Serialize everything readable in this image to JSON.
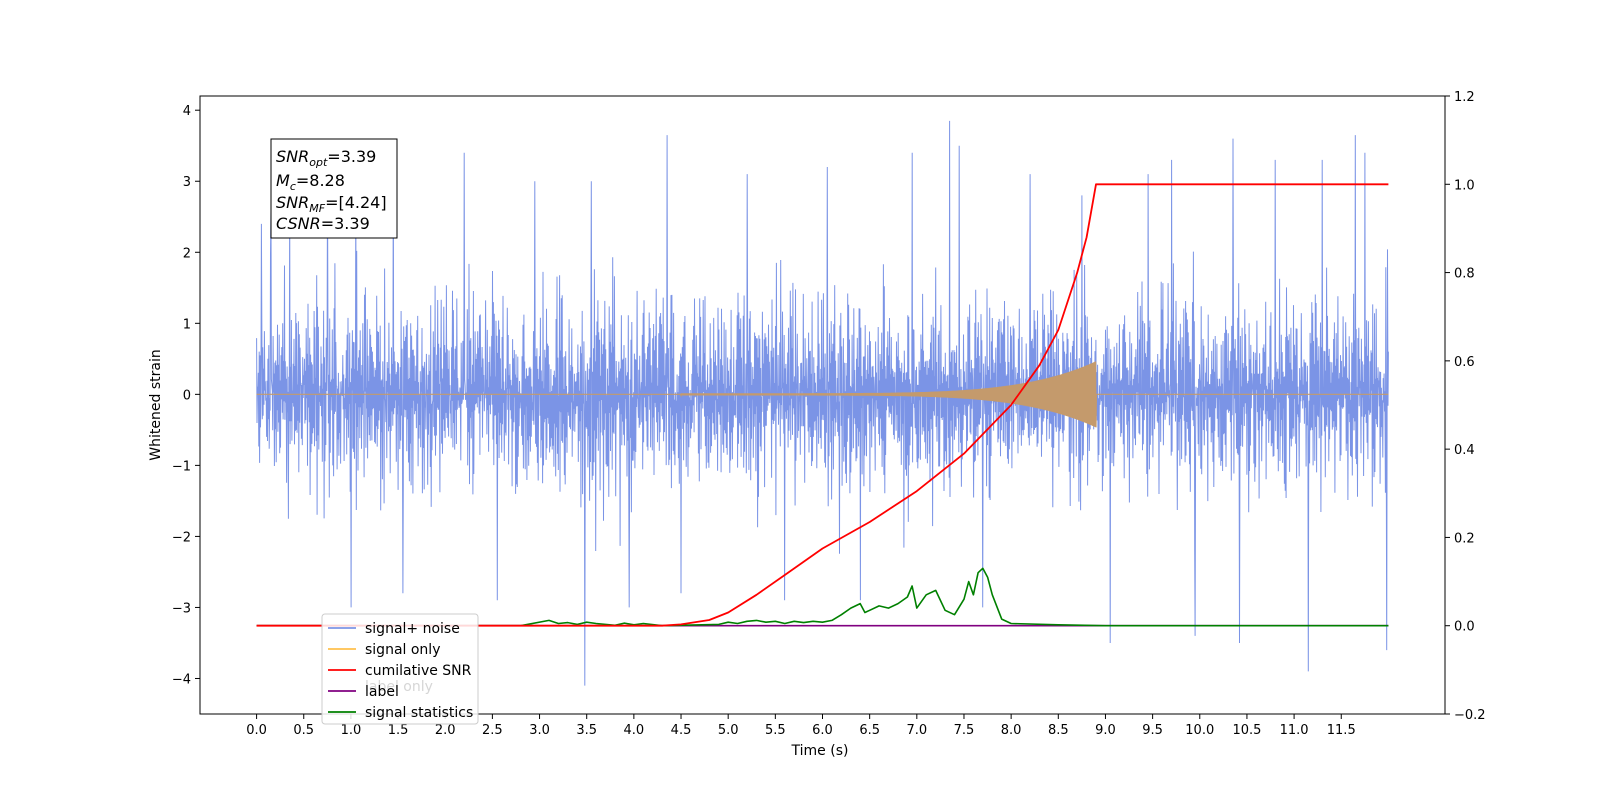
{
  "chart_data": {
    "type": "line",
    "xlabel": "Time (s)",
    "ylabel": "Whitened strain",
    "xlim": [
      -0.6,
      12.6
    ],
    "ylim_left": [
      -4.5,
      4.2
    ],
    "ylim_right": [
      -0.2,
      1.2
    ],
    "x_ticks": [
      "0.0",
      "0.5",
      "1.0",
      "1.5",
      "2.0",
      "2.5",
      "3.0",
      "3.5",
      "4.0",
      "4.5",
      "5.0",
      "5.5",
      "6.0",
      "6.5",
      "7.0",
      "7.5",
      "8.0",
      "8.5",
      "9.0",
      "9.5",
      "10.0",
      "10.5",
      "11.0",
      "11.5"
    ],
    "y_ticks_left": [
      "4",
      "3",
      "2",
      "1",
      "0",
      "−1",
      "−2",
      "−3",
      "−4"
    ],
    "y_ticks_right": [
      "1.2",
      "1.0",
      "0.8",
      "0.6",
      "0.4",
      "0.2",
      "0.0",
      "−0.2"
    ],
    "grid": false,
    "legend_position": "lower-left",
    "colors": {
      "signal_noise": "#7b94e6",
      "signal_only": "#c49a6c",
      "cumulative_snr": "#ff0000",
      "label": "#800080",
      "signal_statistics": "#008000"
    },
    "legend": [
      {
        "label": "signal+ noise",
        "color": "#7b94e6"
      },
      {
        "label": "signal only",
        "color": "#ffc04d"
      },
      {
        "label": "cumilative SNR",
        "color": "#ff0000"
      },
      {
        "label": "label",
        "color": "#800080"
      },
      {
        "label": "signal statistics",
        "color": "#008000"
      }
    ],
    "ghost_legend_text": "label only",
    "info_box": {
      "snr_opt_sym": "SNR",
      "snr_opt_sub": "opt",
      "snr_opt_val": "=3.39",
      "mc_sym": "M",
      "mc_sub": "c",
      "mc_val": "=8.28",
      "snr_mf_sym": "SNR",
      "snr_mf_sub": "MF",
      "snr_mf_val": "=[4.24]",
      "csnr_sym": "CSNR",
      "csnr_val": "=3.39"
    },
    "series": [
      {
        "name": "signal+ noise",
        "axis": "left",
        "x_range": [
          0.0,
          12.0
        ],
        "envelope_typical": 2.3,
        "spikes": [
          {
            "x": 0.05,
            "y": 2.4
          },
          {
            "x": 0.15,
            "y": 2.6
          },
          {
            "x": 0.35,
            "y": 2.7
          },
          {
            "x": 0.75,
            "y": 3.0
          },
          {
            "x": 1.0,
            "y": -3.0
          },
          {
            "x": 1.05,
            "y": 2.9
          },
          {
            "x": 1.45,
            "y": 3.3
          },
          {
            "x": 1.55,
            "y": -2.8
          },
          {
            "x": 2.2,
            "y": 3.4
          },
          {
            "x": 2.55,
            "y": -2.9
          },
          {
            "x": 2.95,
            "y": 3.0
          },
          {
            "x": 3.48,
            "y": -4.1
          },
          {
            "x": 3.55,
            "y": 3.0
          },
          {
            "x": 3.95,
            "y": -3.0
          },
          {
            "x": 4.35,
            "y": 3.65
          },
          {
            "x": 4.5,
            "y": -2.8
          },
          {
            "x": 5.2,
            "y": 3.1
          },
          {
            "x": 5.6,
            "y": -2.9
          },
          {
            "x": 6.05,
            "y": 3.2
          },
          {
            "x": 6.4,
            "y": -2.9
          },
          {
            "x": 6.95,
            "y": 3.4
          },
          {
            "x": 7.35,
            "y": 3.85
          },
          {
            "x": 7.45,
            "y": 3.5
          },
          {
            "x": 7.7,
            "y": -3.0
          },
          {
            "x": 8.2,
            "y": 3.1
          },
          {
            "x": 8.75,
            "y": 2.8
          },
          {
            "x": 9.05,
            "y": -3.5
          },
          {
            "x": 9.45,
            "y": 3.1
          },
          {
            "x": 9.7,
            "y": 3.3
          },
          {
            "x": 9.95,
            "y": -3.4
          },
          {
            "x": 10.35,
            "y": 3.6
          },
          {
            "x": 10.42,
            "y": -3.5
          },
          {
            "x": 10.8,
            "y": 3.3
          },
          {
            "x": 11.15,
            "y": -3.9
          },
          {
            "x": 11.3,
            "y": 3.3
          },
          {
            "x": 11.65,
            "y": 3.65
          },
          {
            "x": 11.75,
            "y": 3.4
          },
          {
            "x": 11.98,
            "y": -3.6
          }
        ]
      },
      {
        "name": "signal only",
        "axis": "left",
        "x_range": [
          0.0,
          12.0
        ],
        "chirp_start": 4.5,
        "chirp_end": 8.9,
        "chirp_peak_amplitude": 0.45
      },
      {
        "name": "cumilative SNR",
        "axis": "right",
        "x": [
          0.0,
          4.3,
          4.5,
          4.8,
          5.0,
          5.3,
          5.6,
          6.0,
          6.5,
          7.0,
          7.5,
          8.0,
          8.3,
          8.5,
          8.7,
          8.8,
          8.9,
          9.0,
          12.0
        ],
        "y": [
          0.0,
          0.0,
          0.003,
          0.013,
          0.03,
          0.07,
          0.115,
          0.175,
          0.235,
          0.305,
          0.39,
          0.5,
          0.59,
          0.67,
          0.8,
          0.88,
          1.0,
          1.0,
          1.0
        ]
      },
      {
        "name": "label",
        "axis": "right",
        "x": [
          0.0,
          12.0
        ],
        "y": [
          0.0,
          0.0
        ]
      },
      {
        "name": "signal statistics",
        "axis": "right",
        "x": [
          0.0,
          2.8,
          3.1,
          3.2,
          3.3,
          3.4,
          3.5,
          3.6,
          3.8,
          3.9,
          4.0,
          4.1,
          4.3,
          4.9,
          5.0,
          5.1,
          5.2,
          5.3,
          5.4,
          5.5,
          5.6,
          5.7,
          5.8,
          5.9,
          6.0,
          6.1,
          6.2,
          6.3,
          6.4,
          6.45,
          6.5,
          6.6,
          6.7,
          6.8,
          6.9,
          6.95,
          7.0,
          7.05,
          7.1,
          7.2,
          7.3,
          7.4,
          7.5,
          7.55,
          7.6,
          7.65,
          7.7,
          7.75,
          7.8,
          7.9,
          8.0,
          8.5,
          9.0,
          12.0
        ],
        "y": [
          0.0,
          0.0,
          0.012,
          0.005,
          0.007,
          0.003,
          0.008,
          0.005,
          0.001,
          0.006,
          0.002,
          0.005,
          0.0,
          0.003,
          0.008,
          0.005,
          0.01,
          0.012,
          0.008,
          0.01,
          0.005,
          0.01,
          0.007,
          0.01,
          0.008,
          0.012,
          0.025,
          0.04,
          0.05,
          0.03,
          0.035,
          0.045,
          0.04,
          0.05,
          0.065,
          0.09,
          0.04,
          0.055,
          0.07,
          0.08,
          0.035,
          0.025,
          0.06,
          0.1,
          0.07,
          0.12,
          0.13,
          0.11,
          0.07,
          0.015,
          0.005,
          0.002,
          0.0,
          0.0
        ]
      }
    ]
  }
}
